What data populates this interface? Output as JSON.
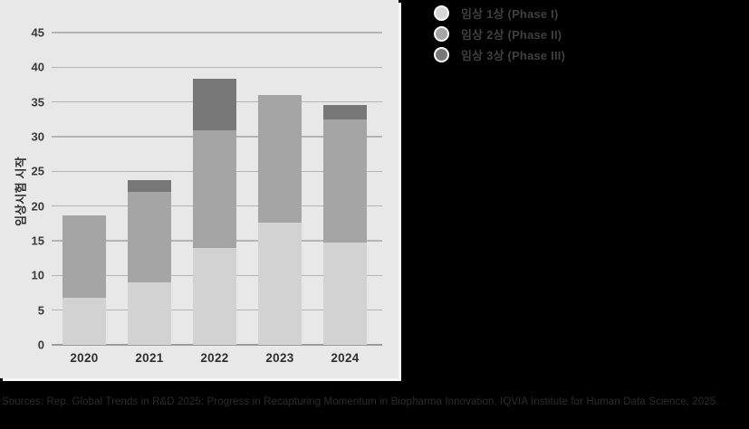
{
  "legend": {
    "items": [
      {
        "label": "임상 1상 (Phase I)",
        "color": "#d7d7d7"
      },
      {
        "label": "임상 2상 (Phase II)",
        "color": "#a5a5a5"
      },
      {
        "label": "임상 3상 (Phase III)",
        "color": "#787878"
      }
    ]
  },
  "source": "Sources: Rep. Global Trends in R&D 2025: Progress in Recapturing Momentum in Biopharma Innovation. IQVIA Institute for Human Data Science, 2025.",
  "colors": {
    "panel_background": "#e8e8e8",
    "page_background": "#000000",
    "gridline": "#b4b4b4",
    "axis_line": "#9c9c9c",
    "phase1": "#d2d2d2",
    "phase2": "#a5a5a5",
    "phase3": "#787878"
  },
  "chart_data": {
    "type": "bar",
    "stacked": true,
    "categories": [
      "2020",
      "2021",
      "2022",
      "2023",
      "2024"
    ],
    "series": [
      {
        "name": "임상 1상 (Phase I)",
        "color": "#d2d2d2",
        "values": [
          6.8,
          9.0,
          13.9,
          17.6,
          14.7
        ]
      },
      {
        "name": "임상 2상 (Phase II)",
        "color": "#a5a5a5",
        "values": [
          11.9,
          13.0,
          17.0,
          18.4,
          17.8
        ]
      },
      {
        "name": "임상 3상 (Phase III)",
        "color": "#787878",
        "values": [
          0,
          1.8,
          7.5,
          0,
          2.1
        ]
      }
    ],
    "totals": [
      18.7,
      23.8,
      38.4,
      36.0,
      34.6
    ],
    "title": "",
    "xlabel": "",
    "ylabel": "임상시험 시작",
    "ylim": [
      0,
      45
    ],
    "ytick_step": 5,
    "grid": true,
    "legend_position": "top-right-outside"
  }
}
